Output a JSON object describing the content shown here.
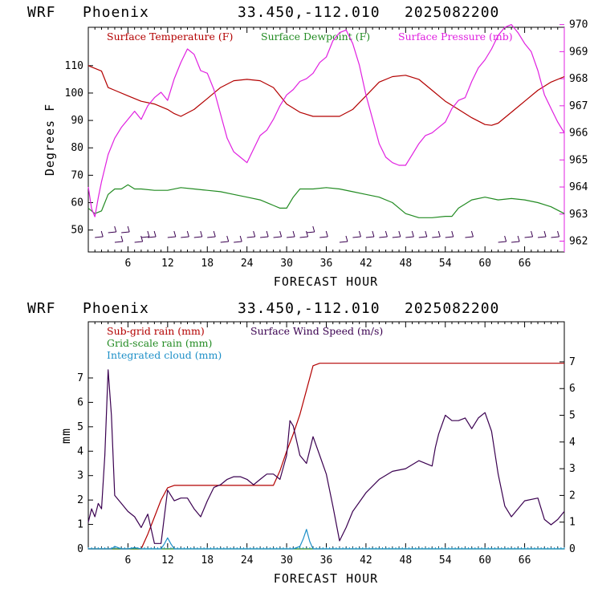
{
  "colors": {
    "temp": "#b30000",
    "dew": "#228b22",
    "press": "#e020e0",
    "subrain": "#b30000",
    "gridrain": "#228b22",
    "cloud": "#1e90c8",
    "wind": "#3a0050"
  },
  "chart_data": [
    {
      "type": "line",
      "header": {
        "model": "WRF",
        "place": "Phoenix",
        "coords": "33.450,-112.010",
        "init": "2025082200"
      },
      "xlabel": "FORECAST HOUR",
      "ylabel": "Degrees F",
      "xticks": [
        6,
        12,
        18,
        24,
        30,
        36,
        42,
        48,
        54,
        60,
        66
      ],
      "xlim": [
        0,
        72
      ],
      "ylim": [
        42,
        124
      ],
      "yticks": [
        50,
        60,
        70,
        80,
        90,
        100,
        110
      ],
      "y2lim": [
        961.6,
        969.9
      ],
      "y2ticks": [
        962,
        963,
        964,
        965,
        966,
        967,
        968,
        969,
        970
      ],
      "series": [
        {
          "name": "Surface Temperature (F)",
          "axis": "left",
          "color": "temp",
          "x": [
            0,
            1,
            2,
            3,
            4,
            6,
            8,
            10,
            12,
            13,
            14,
            16,
            18,
            20,
            22,
            24,
            26,
            28,
            30,
            32,
            34,
            36,
            38,
            40,
            42,
            44,
            46,
            48,
            50,
            52,
            54,
            56,
            58,
            60,
            61,
            62,
            64,
            66,
            68,
            70,
            72
          ],
          "y": [
            110,
            109,
            108,
            102,
            101,
            99,
            97,
            96,
            94,
            92.5,
            91.5,
            94,
            98,
            102,
            104.5,
            105,
            104.5,
            102,
            96,
            93,
            91.5,
            91.5,
            91.5,
            94,
            99,
            104,
            106,
            106.5,
            105,
            101,
            97,
            94,
            91,
            88.5,
            88.2,
            89,
            93,
            97,
            101,
            104,
            106
          ]
        },
        {
          "name": "Surface Dewpoint (F)",
          "axis": "left",
          "color": "dew",
          "x": [
            0,
            1,
            2,
            3,
            4,
            5,
            6,
            7,
            8,
            10,
            12,
            14,
            16,
            18,
            20,
            22,
            24,
            26,
            28,
            29,
            30,
            31,
            32,
            34,
            36,
            38,
            40,
            42,
            44,
            46,
            48,
            50,
            52,
            54,
            55,
            56,
            58,
            60,
            62,
            64,
            66,
            68,
            70,
            72
          ],
          "y": [
            58,
            56,
            57,
            63,
            65,
            65,
            66.5,
            65,
            65,
            64.5,
            64.5,
            65.5,
            65,
            64.5,
            64,
            63,
            62,
            61,
            59,
            58,
            58,
            62,
            65,
            65,
            65.5,
            65,
            64,
            63,
            62,
            60,
            56,
            54.5,
            54.5,
            55,
            55,
            58,
            61,
            62,
            61,
            61.5,
            61,
            60,
            58.5,
            56
          ]
        },
        {
          "name": "Surface Pressure (mb)",
          "axis": "right",
          "color": "press",
          "x": [
            0,
            0.5,
            1,
            1.5,
            2,
            3,
            4,
            5,
            6,
            7,
            8,
            9,
            10,
            11,
            12,
            13,
            14,
            15,
            16,
            17,
            18,
            19,
            20,
            21,
            22,
            23,
            24,
            25,
            26,
            27,
            28,
            29,
            30,
            31,
            32,
            33,
            34,
            35,
            36,
            37,
            38,
            39,
            40,
            41,
            42,
            43,
            44,
            45,
            46,
            47,
            48,
            49,
            50,
            51,
            52,
            53,
            54,
            55,
            56,
            57,
            58,
            59,
            60,
            61,
            62,
            63,
            64,
            65,
            66,
            67,
            68,
            69,
            70,
            71,
            72
          ],
          "y": [
            964,
            963.2,
            962.9,
            963.6,
            964.2,
            965.2,
            965.8,
            966.2,
            966.5,
            966.8,
            966.5,
            967,
            967.3,
            967.5,
            967.2,
            968,
            968.6,
            969.1,
            968.9,
            968.3,
            968.2,
            967.6,
            966.7,
            965.8,
            965.3,
            965.1,
            964.9,
            965.4,
            965.9,
            966.1,
            966.5,
            967,
            967.4,
            967.6,
            967.9,
            968,
            968.2,
            968.6,
            968.8,
            969.4,
            969.7,
            969.8,
            969.3,
            968.5,
            967.4,
            966.5,
            965.6,
            965.1,
            964.9,
            964.8,
            964.8,
            965.2,
            965.6,
            965.9,
            966,
            966.2,
            966.4,
            966.9,
            967.2,
            967.3,
            967.9,
            968.4,
            968.7,
            969.1,
            969.6,
            969.9,
            970,
            969.7,
            969.3,
            969,
            968.3,
            967.4,
            966.9,
            966.4,
            966
          ]
        }
      ]
    },
    {
      "type": "line",
      "header": {
        "model": "WRF",
        "place": "Phoenix",
        "coords": "33.450,-112.010",
        "init": "2025082200"
      },
      "xlabel": "FORECAST HOUR",
      "ylabel": "mm",
      "xticks": [
        6,
        12,
        18,
        24,
        30,
        36,
        42,
        48,
        54,
        60,
        66
      ],
      "xlim": [
        0,
        72
      ],
      "ylim": [
        0,
        9.3
      ],
      "yticks": [
        0,
        1,
        2,
        3,
        4,
        5,
        6,
        7
      ],
      "y2lim": [
        0,
        8.5
      ],
      "y2ticks": [
        0,
        1,
        2,
        3,
        4,
        5,
        6,
        7
      ],
      "series": [
        {
          "name": "Sub-grid rain (mm)",
          "axis": "left",
          "color": "subrain",
          "x": [
            0,
            8,
            9,
            10,
            11,
            12,
            13,
            20,
            27,
            28,
            29,
            30,
            31,
            32,
            33,
            34,
            35,
            72
          ],
          "y": [
            0,
            0,
            0.6,
            1.3,
            2.0,
            2.5,
            2.6,
            2.6,
            2.6,
            2.6,
            3.2,
            4.0,
            4.7,
            5.5,
            6.5,
            7.5,
            7.6,
            7.6
          ]
        },
        {
          "name": "Grid-scale rain (mm)",
          "axis": "left",
          "color": "gridrain",
          "x": [
            0,
            72
          ],
          "y": [
            0,
            0
          ]
        },
        {
          "name": "Integrated cloud (mm)",
          "axis": "left",
          "color": "cloud",
          "x": [
            0,
            3.5,
            4,
            4.5,
            5,
            6,
            7,
            8,
            9,
            11,
            11.5,
            12,
            12.5,
            13,
            15,
            18,
            30,
            31,
            32,
            32.5,
            33,
            33.5,
            34,
            36,
            72
          ],
          "y": [
            0,
            0,
            0.1,
            0.05,
            0,
            0,
            0.05,
            0,
            0,
            0,
            0.2,
            0.45,
            0.2,
            0,
            0,
            0,
            0,
            0,
            0.1,
            0.4,
            0.8,
            0.3,
            0,
            0,
            0
          ]
        },
        {
          "name": "Surface Wind Speed (m/s)",
          "axis": "right",
          "color": "wind",
          "x": [
            0,
            0.5,
            1,
            1.5,
            2,
            2.5,
            3,
            3.5,
            4,
            5,
            6,
            7,
            8,
            9,
            10,
            11,
            12,
            13,
            14,
            15,
            16,
            17,
            18,
            19,
            20,
            21,
            22,
            23,
            24,
            25,
            26,
            27,
            28,
            29,
            30,
            30.5,
            31,
            32,
            33,
            34,
            35,
            36,
            37,
            38,
            39,
            40,
            42,
            44,
            46,
            48,
            50,
            52,
            52.5,
            53,
            54,
            55,
            56,
            57,
            58,
            59,
            60,
            61,
            62,
            63,
            64,
            66,
            68,
            69,
            70,
            71,
            72
          ],
          "y": [
            1,
            1.5,
            1.2,
            1.7,
            1.5,
            3.5,
            6.7,
            5,
            2,
            1.7,
            1.4,
            1.2,
            0.8,
            1.3,
            0.2,
            0.2,
            2.2,
            1.8,
            1.9,
            1.9,
            1.5,
            1.2,
            1.8,
            2.3,
            2.4,
            2.6,
            2.7,
            2.7,
            2.6,
            2.4,
            2.6,
            2.8,
            2.8,
            2.6,
            3.5,
            4.8,
            4.6,
            3.5,
            3.2,
            4.2,
            3.5,
            2.8,
            1.6,
            0.3,
            0.8,
            1.4,
            2.1,
            2.6,
            2.9,
            3.0,
            3.3,
            3.1,
            3.8,
            4.3,
            5.0,
            4.8,
            4.8,
            4.9,
            4.5,
            4.9,
            5.1,
            4.4,
            2.8,
            1.6,
            1.2,
            1.8,
            1.9,
            1.1,
            0.9,
            1.1,
            1.4
          ]
        }
      ]
    }
  ],
  "barbs": [
    {
      "h": 1,
      "row": 0
    },
    {
      "h": 3,
      "row": -1
    },
    {
      "h": 4,
      "row": 1
    },
    {
      "h": 5,
      "row": -1
    },
    {
      "h": 7,
      "row": 1
    },
    {
      "h": 8,
      "row": 0
    },
    {
      "h": 9,
      "row": 0
    },
    {
      "h": 12,
      "row": 0
    },
    {
      "h": 14,
      "row": 0
    },
    {
      "h": 16,
      "row": 0
    },
    {
      "h": 18,
      "row": 0
    },
    {
      "h": 20,
      "row": 1
    },
    {
      "h": 22,
      "row": 1
    },
    {
      "h": 24,
      "row": 0
    },
    {
      "h": 26,
      "row": 0
    },
    {
      "h": 28,
      "row": 0
    },
    {
      "h": 30,
      "row": 0
    },
    {
      "h": 32,
      "row": 0
    },
    {
      "h": 33,
      "row": -1
    },
    {
      "h": 35,
      "row": 0
    },
    {
      "h": 38,
      "row": 1
    },
    {
      "h": 40,
      "row": 0
    },
    {
      "h": 42,
      "row": 0
    },
    {
      "h": 44,
      "row": 0
    },
    {
      "h": 46,
      "row": 0
    },
    {
      "h": 48,
      "row": 0
    },
    {
      "h": 50,
      "row": 0
    },
    {
      "h": 52,
      "row": 0
    },
    {
      "h": 54,
      "row": 0
    },
    {
      "h": 57,
      "row": 0
    },
    {
      "h": 62,
      "row": 1
    },
    {
      "h": 64,
      "row": 1
    },
    {
      "h": 66,
      "row": 0
    },
    {
      "h": 68,
      "row": 0
    },
    {
      "h": 70,
      "row": 0
    }
  ]
}
